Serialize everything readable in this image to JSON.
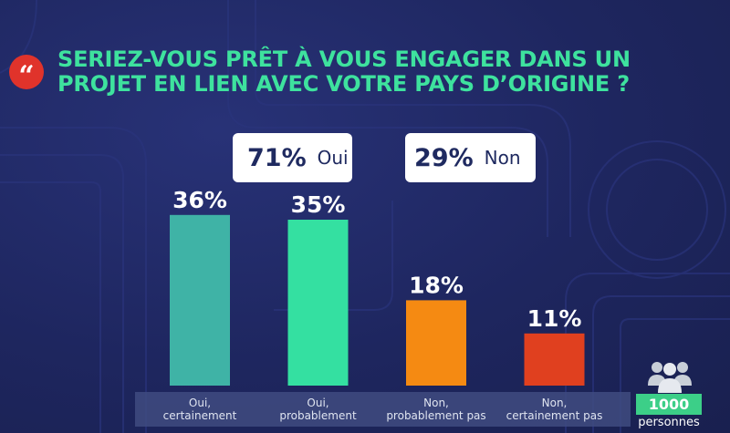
{
  "question": {
    "line1": "SERIEZ-VOUS PRÊT À VOUS ENGAGER DANS UN",
    "line2": "PROJET EN LIEN AVEC VOTRE PAYS D’ORIGINE ?",
    "quote_glyph": "“"
  },
  "summary": {
    "oui": {
      "pct": "71%",
      "label": "Oui"
    },
    "non": {
      "pct": "29%",
      "label": "Non"
    }
  },
  "total": {
    "count": "1000",
    "unit": "personnes"
  },
  "colors": {
    "title": "#3ee29e",
    "background": "#1d2560",
    "oui_certainement": "#3fb3a6",
    "oui_probablement": "#34e0a1",
    "non_probablement_pas": "#f58a12",
    "non_certainement_pas": "#e0401f",
    "quote_badge": "#e0332b",
    "total_badge": "#3ccf88"
  },
  "chart_data": {
    "type": "bar",
    "categories": [
      [
        "Oui,",
        "certainement"
      ],
      [
        "Oui,",
        "probablement"
      ],
      [
        "Non,",
        "probablement pas"
      ],
      [
        "Non,",
        "certainement pas"
      ]
    ],
    "values": [
      36,
      35,
      18,
      11
    ],
    "value_labels": [
      "36%",
      "35%",
      "18%",
      "11%"
    ],
    "colors": [
      "#3fb3a6",
      "#34e0a1",
      "#f58a12",
      "#e0401f"
    ],
    "ylim": [
      0,
      40
    ],
    "grid": false,
    "legend": "none"
  }
}
